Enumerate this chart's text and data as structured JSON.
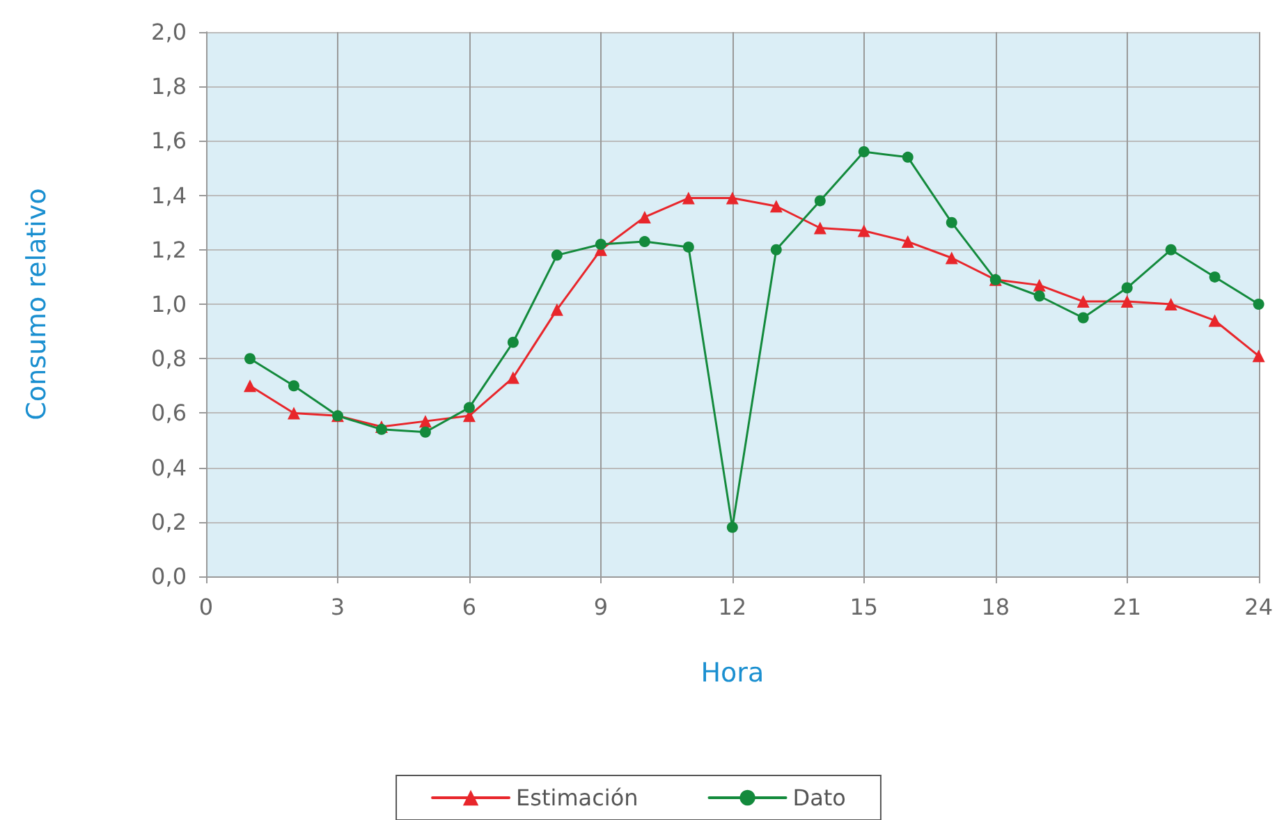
{
  "chart_data": {
    "type": "line",
    "xlabel": "Hora",
    "ylabel": "Consumo relativo",
    "x": [
      1,
      2,
      3,
      4,
      5,
      6,
      7,
      8,
      9,
      10,
      11,
      12,
      13,
      14,
      15,
      16,
      17,
      18,
      19,
      20,
      21,
      22,
      23,
      24
    ],
    "series": [
      {
        "name": "Estimación",
        "color": "#e8262b",
        "marker": "triangle",
        "values": [
          0.7,
          0.6,
          0.59,
          0.55,
          0.57,
          0.59,
          0.73,
          0.98,
          1.2,
          1.32,
          1.39,
          1.39,
          1.36,
          1.28,
          1.27,
          1.23,
          1.17,
          1.09,
          1.07,
          1.01,
          1.01,
          1.0,
          0.94,
          0.81
        ]
      },
      {
        "name": "Dato",
        "color": "#138a3c",
        "marker": "circle",
        "values": [
          0.8,
          0.7,
          0.59,
          0.54,
          0.53,
          0.62,
          0.86,
          1.18,
          1.22,
          1.23,
          1.21,
          0.18,
          1.2,
          1.38,
          1.56,
          1.54,
          1.3,
          1.09,
          1.03,
          0.95,
          1.06,
          1.2,
          1.1,
          1.0
        ]
      }
    ],
    "xlim": [
      0,
      24
    ],
    "xticks": [
      0,
      3,
      6,
      9,
      12,
      15,
      18,
      21,
      24
    ],
    "ylim": [
      0,
      2
    ],
    "yticks": [
      {
        "value": 0,
        "label": "0,0"
      },
      {
        "value": 0.2,
        "label": "0,2"
      },
      {
        "value": 0.4,
        "label": "0,4"
      },
      {
        "value": 0.6,
        "label": "0,6"
      },
      {
        "value": 0.8,
        "label": "0,8"
      },
      {
        "value": 1,
        "label": "1,0"
      },
      {
        "value": 1.2,
        "label": "1,2"
      },
      {
        "value": 1.4,
        "label": "1,4"
      },
      {
        "value": 1.6,
        "label": "1,6"
      },
      {
        "value": 1.8,
        "label": "1,8"
      },
      {
        "value": 2,
        "label": "2,0"
      }
    ],
    "grid": true,
    "legend": "bottom",
    "line_style": "solid"
  }
}
